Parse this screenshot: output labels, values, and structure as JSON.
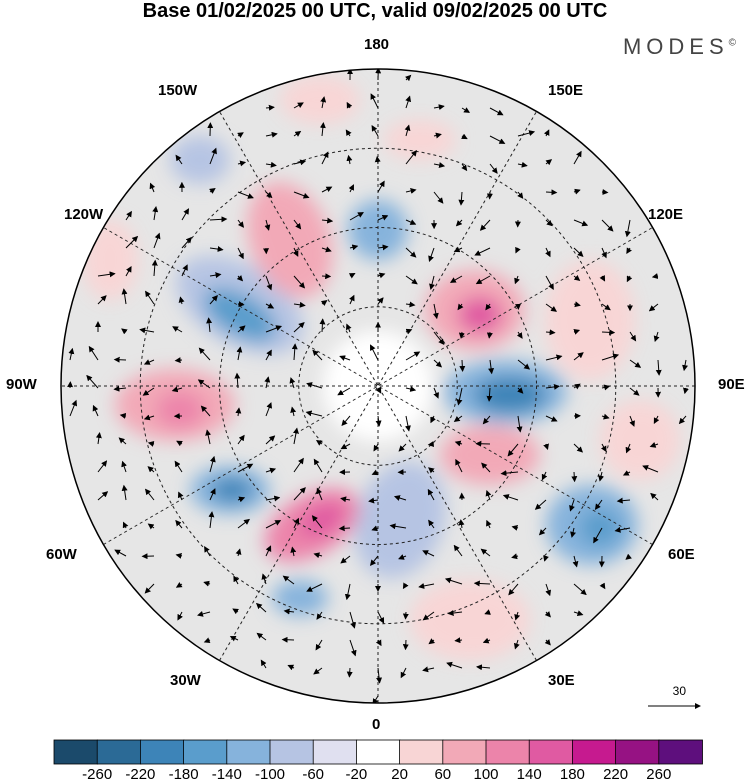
{
  "title": "Base 01/02/2025 00 UTC, valid 09/02/2025 00 UTC",
  "brand": "MODES",
  "brand_mark": "©",
  "longitude_labels": {
    "n180": "180",
    "w150": "150W",
    "e150": "150E",
    "w120": "120W",
    "e120": "120E",
    "w90": "90W",
    "e90": "90E",
    "w60": "60W",
    "e60": "60E",
    "w30": "30W",
    "e30": "30E",
    "s0": "0"
  },
  "vector_reference": "30",
  "colorbar": {
    "colors": [
      "#1b4a6b",
      "#2b6a96",
      "#3d84b8",
      "#5a9dcc",
      "#86b3dc",
      "#b6c4e3",
      "#e0e0f0",
      "#ffffff",
      "#f8d5d5",
      "#f2a9b7",
      "#ec84aa",
      "#e05aa2",
      "#c61a8f",
      "#961283",
      "#5e0f7d"
    ],
    "labels": [
      "-260",
      "-220",
      "-180",
      "-140",
      "-100",
      "-60",
      "-20",
      "20",
      "60",
      "100",
      "140",
      "180",
      "220",
      "260"
    ]
  },
  "colors": {
    "background_map": "#e6e6e6",
    "negative_strong": "#3d84b8",
    "positive_strong": "#e05aa2"
  }
}
